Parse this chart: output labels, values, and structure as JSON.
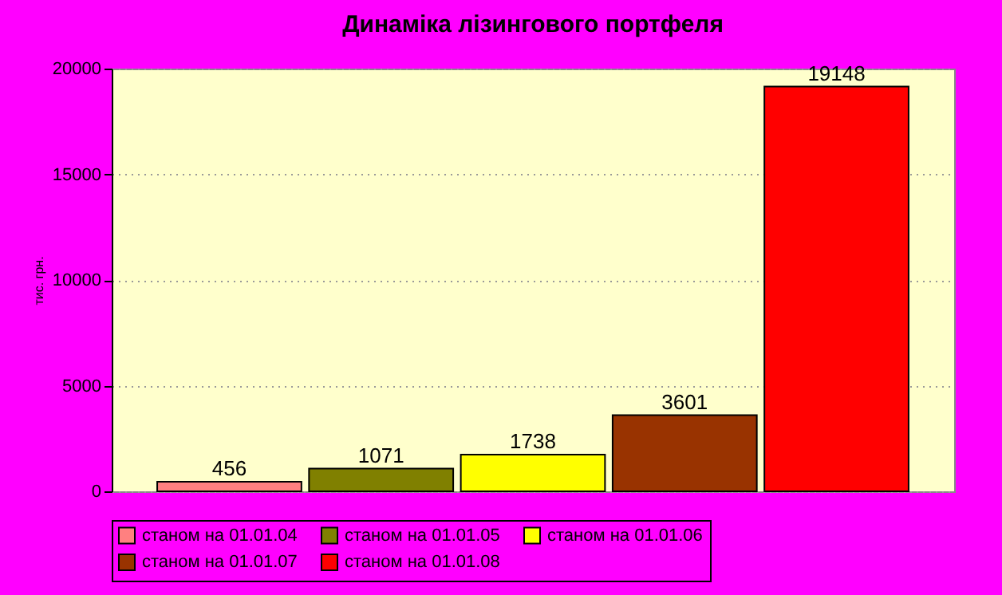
{
  "chart_data": {
    "type": "bar",
    "title": "Динаміка лізингового портфеля",
    "ylabel": "тис. грн.",
    "categories": [
      null
    ],
    "series": [
      {
        "name": "станом на 01.01.04",
        "color": "#ff8080",
        "values": [
          456
        ]
      },
      {
        "name": "станом на 01.01.05",
        "color": "#808000",
        "values": [
          1071
        ]
      },
      {
        "name": "станом на 01.01.06",
        "color": "#ffff00",
        "values": [
          1738
        ]
      },
      {
        "name": "станом на 01.01.07",
        "color": "#993300",
        "values": [
          3601
        ]
      },
      {
        "name": "станом на 01.01.08",
        "color": "#ff0000",
        "values": [
          19148
        ]
      }
    ],
    "ylim": [
      0,
      20000
    ],
    "yticks": [
      0,
      5000,
      10000,
      15000,
      20000
    ],
    "grid": "y",
    "legend": "bottom",
    "data_labels": true
  }
}
